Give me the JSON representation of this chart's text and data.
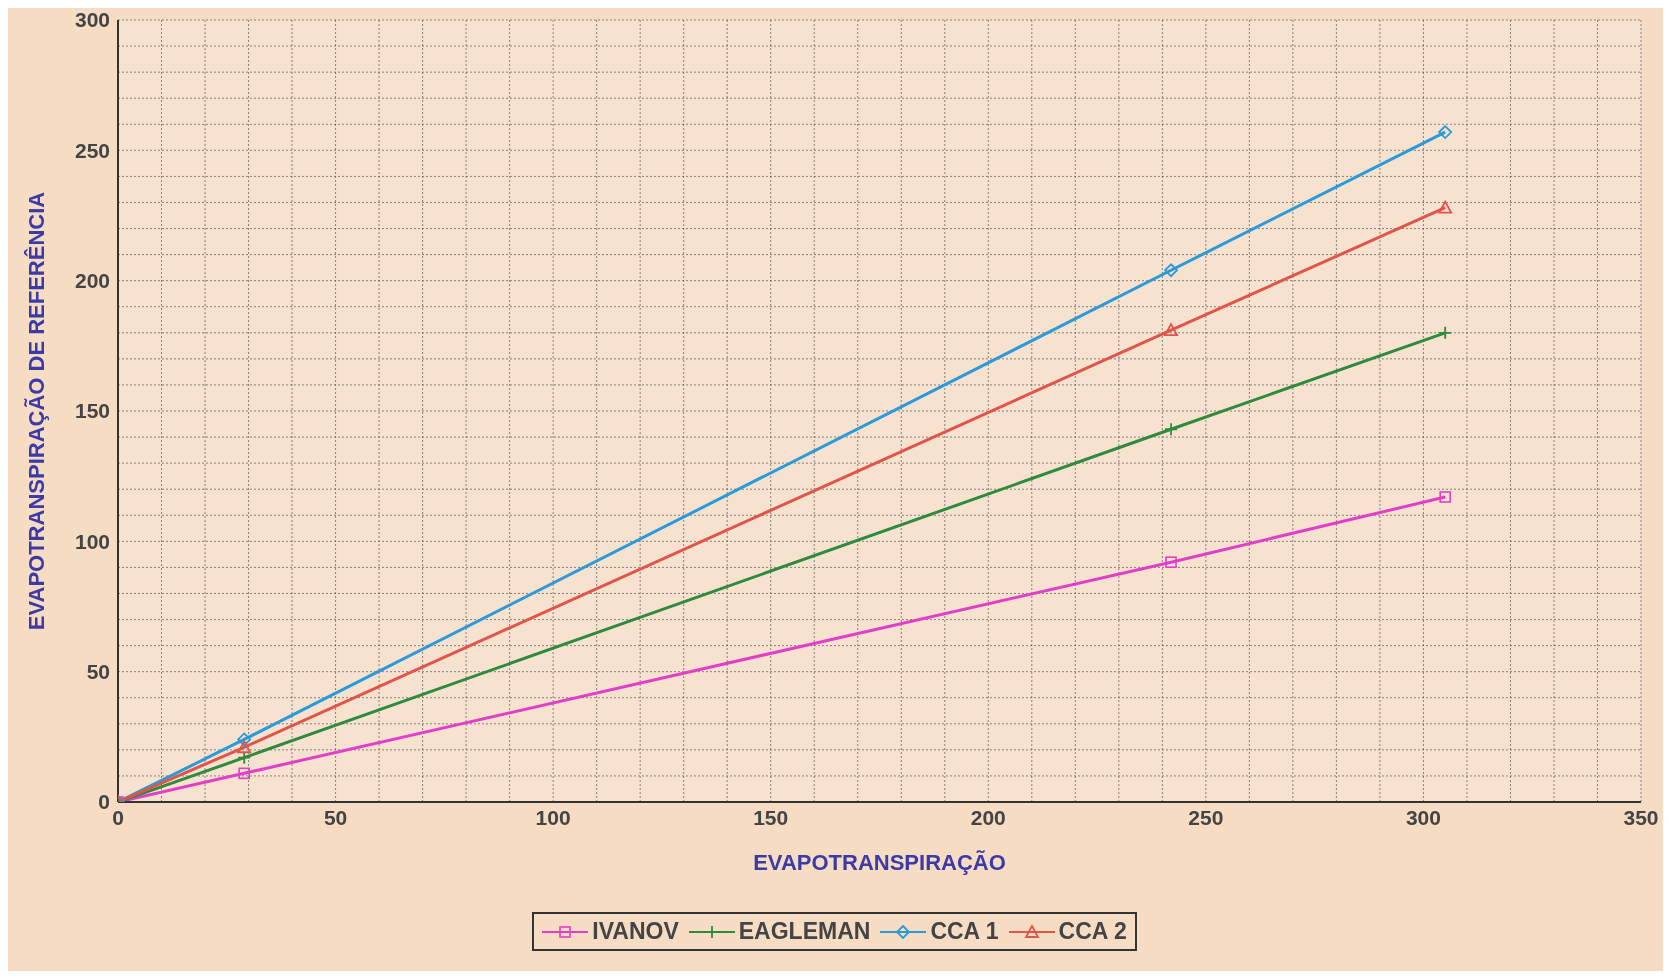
{
  "chart_data": {
    "type": "line",
    "xlabel": "EVAPOTRANSPIRAÇÃO",
    "ylabel": "EVAPOTRANSPIRAÇÃO DE REFERÊNCIA",
    "x": [
      0,
      29,
      242,
      305
    ],
    "series": [
      {
        "name": "IVANOV",
        "color": "#e040c8",
        "marker": "square",
        "values": [
          0,
          11,
          92,
          117
        ]
      },
      {
        "name": "EAGLEMAN",
        "color": "#2e8b3e",
        "marker": "cross",
        "values": [
          0,
          17,
          143,
          180
        ]
      },
      {
        "name": "CCA 1",
        "color": "#2a9ad8",
        "marker": "diamond",
        "values": [
          0,
          24,
          204,
          257
        ]
      },
      {
        "name": "CCA 2",
        "color": "#e0554a",
        "marker": "triangle",
        "values": [
          0,
          21,
          181,
          228
        ]
      }
    ],
    "xlim": [
      0,
      350
    ],
    "xticks": [
      0,
      {
        "value": 10,
        "label": null
      },
      {
        "value": 20,
        "label": null
      },
      {
        "value": 30,
        "label": null
      },
      {
        "value": 40,
        "label": null
      },
      50,
      {
        "value": 60,
        "label": null
      },
      {
        "value": 70,
        "label": null
      },
      {
        "value": 80,
        "label": null
      },
      {
        "value": 90,
        "label": null
      },
      100,
      {
        "value": 110,
        "label": null
      },
      {
        "value": 120,
        "label": null
      },
      {
        "value": 130,
        "label": null
      },
      {
        "value": 140,
        "label": null
      },
      150,
      {
        "value": 160,
        "label": null
      },
      {
        "value": 170,
        "label": null
      },
      {
        "value": 180,
        "label": null
      },
      {
        "value": 190,
        "label": null
      },
      200,
      {
        "value": 210,
        "label": null
      },
      {
        "value": 220,
        "label": null
      },
      {
        "value": 230,
        "label": null
      },
      {
        "value": 240,
        "label": null
      },
      250,
      {
        "value": 260,
        "label": null
      },
      {
        "value": 270,
        "label": null
      },
      {
        "value": 280,
        "label": null
      },
      {
        "value": 290,
        "label": null
      },
      300,
      {
        "value": 310,
        "label": null
      },
      {
        "value": 320,
        "label": null
      },
      {
        "value": 330,
        "label": null
      },
      {
        "value": 340,
        "label": null
      },
      350
    ],
    "ylim": [
      0,
      300
    ],
    "yticks": [
      0,
      {
        "value": 10,
        "label": null
      },
      {
        "value": 20,
        "label": null
      },
      {
        "value": 30,
        "label": null
      },
      {
        "value": 40,
        "label": null
      },
      50,
      {
        "value": 60,
        "label": null
      },
      {
        "value": 70,
        "label": null
      },
      {
        "value": 80,
        "label": null
      },
      {
        "value": 90,
        "label": null
      },
      100,
      {
        "value": 110,
        "label": null
      },
      {
        "value": 120,
        "label": null
      },
      {
        "value": 130,
        "label": null
      },
      {
        "value": 140,
        "label": null
      },
      150,
      {
        "value": 160,
        "label": null
      },
      {
        "value": 170,
        "label": null
      },
      {
        "value": 180,
        "label": null
      },
      {
        "value": 190,
        "label": null
      },
      200,
      {
        "value": 210,
        "label": null
      },
      {
        "value": 220,
        "label": null
      },
      {
        "value": 230,
        "label": null
      },
      {
        "value": 240,
        "label": null
      },
      250,
      {
        "value": 260,
        "label": null
      },
      {
        "value": 270,
        "label": null
      },
      {
        "value": 280,
        "label": null
      },
      {
        "value": 290,
        "label": null
      },
      300
    ],
    "grid": true,
    "legend": "bottom"
  }
}
